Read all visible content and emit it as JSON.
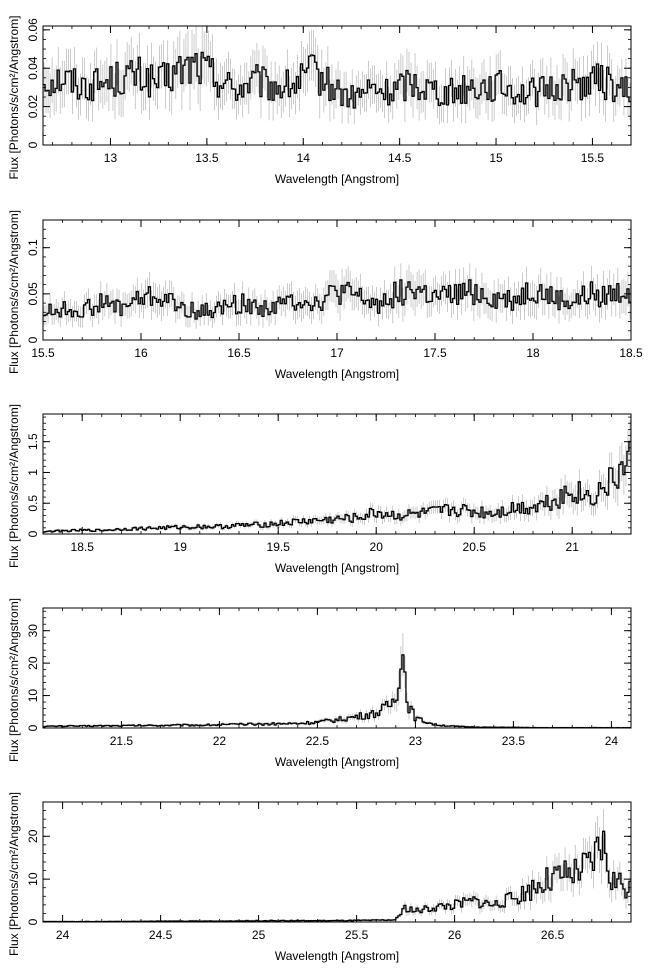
{
  "panels": [
    {
      "xlabel": "Wavelength [Angstrom]",
      "ylabel": "Flux [Photons/s/cm²/Angstrom]",
      "xlim": [
        12.65,
        15.7
      ],
      "ylim": [
        0,
        0.062
      ],
      "xticks": [
        {
          "v": 13,
          "label": "13"
        },
        {
          "v": 13.5,
          "label": "13.5"
        },
        {
          "v": 14,
          "label": "14"
        },
        {
          "v": 14.5,
          "label": "14.5"
        },
        {
          "v": 15,
          "label": "15"
        },
        {
          "v": 15.5,
          "label": "15.5"
        }
      ],
      "yticks": [
        {
          "v": 0,
          "label": "0"
        },
        {
          "v": 0.02,
          "label": "0.02"
        },
        {
          "v": 0.04,
          "label": "0.04"
        },
        {
          "v": 0.06,
          "label": "0.06"
        }
      ],
      "x_minor_step": 0.1,
      "y_minor_step": 0.005
    },
    {
      "xlabel": "Wavelength [Angstrom]",
      "ylabel": "Flux [Photons/s/cm²/Angstrom]",
      "xlim": [
        15.5,
        18.5
      ],
      "ylim": [
        0,
        0.13
      ],
      "xticks": [
        {
          "v": 15.5,
          "label": "15.5"
        },
        {
          "v": 16,
          "label": "16"
        },
        {
          "v": 16.5,
          "label": "16.5"
        },
        {
          "v": 17,
          "label": "17"
        },
        {
          "v": 17.5,
          "label": "17.5"
        },
        {
          "v": 18,
          "label": "18"
        },
        {
          "v": 18.5,
          "label": "18.5"
        }
      ],
      "yticks": [
        {
          "v": 0,
          "label": "0"
        },
        {
          "v": 0.05,
          "label": "0.05"
        },
        {
          "v": 0.1,
          "label": "0.1"
        }
      ],
      "x_minor_step": 0.1,
      "y_minor_step": 0.01
    },
    {
      "xlabel": "Wavelength [Angstrom]",
      "ylabel": "Flux [Photons/s/cm²/Angstrom]",
      "xlim": [
        18.3,
        21.3
      ],
      "ylim": [
        0,
        1.95
      ],
      "xticks": [
        {
          "v": 18.5,
          "label": "18.5"
        },
        {
          "v": 19,
          "label": "19"
        },
        {
          "v": 19.5,
          "label": "19.5"
        },
        {
          "v": 20,
          "label": "20"
        },
        {
          "v": 20.5,
          "label": "20.5"
        },
        {
          "v": 21,
          "label": "21"
        }
      ],
      "yticks": [
        {
          "v": 0,
          "label": "0"
        },
        {
          "v": 0.5,
          "label": "0.5"
        },
        {
          "v": 1,
          "label": "1"
        },
        {
          "v": 1.5,
          "label": "1.5"
        }
      ],
      "x_minor_step": 0.1,
      "y_minor_step": 0.1
    },
    {
      "xlabel": "Wavelength [Angstrom]",
      "ylabel": "Flux [Photons/s/cm²/Angstrom]",
      "xlim": [
        21.1,
        24.1
      ],
      "ylim": [
        0,
        37
      ],
      "xticks": [
        {
          "v": 21.5,
          "label": "21.5"
        },
        {
          "v": 22,
          "label": "22"
        },
        {
          "v": 22.5,
          "label": "22.5"
        },
        {
          "v": 23,
          "label": "23"
        },
        {
          "v": 23.5,
          "label": "23.5"
        },
        {
          "v": 24,
          "label": "24"
        }
      ],
      "yticks": [
        {
          "v": 0,
          "label": "0"
        },
        {
          "v": 10,
          "label": "10"
        },
        {
          "v": 20,
          "label": "20"
        },
        {
          "v": 30,
          "label": "30"
        }
      ],
      "x_minor_step": 0.1,
      "y_minor_step": 2
    },
    {
      "xlabel": "Wavelength [Angstrom]",
      "ylabel": "Flux [Photons/s/cm²/Angstrom]",
      "xlim": [
        23.9,
        26.9
      ],
      "ylim": [
        0,
        28
      ],
      "xticks": [
        {
          "v": 24,
          "label": "24"
        },
        {
          "v": 24.5,
          "label": "24.5"
        },
        {
          "v": 25,
          "label": "25"
        },
        {
          "v": 25.5,
          "label": "25.5"
        },
        {
          "v": 26,
          "label": "26"
        },
        {
          "v": 26.5,
          "label": "26.5"
        }
      ],
      "yticks": [
        {
          "v": 0,
          "label": "0"
        },
        {
          "v": 10,
          "label": "10"
        },
        {
          "v": 20,
          "label": "20"
        }
      ],
      "x_minor_step": 0.1,
      "y_minor_step": 2
    }
  ],
  "chart_data": [
    {
      "type": "line",
      "title": "",
      "xlabel": "Wavelength [Angstrom]",
      "ylabel": "Flux [Photons/s/cm²/Angstrom]",
      "xlim": [
        12.65,
        15.7
      ],
      "ylim": [
        0,
        0.062
      ],
      "grid": false,
      "series": [
        {
          "x": [
            12.65,
            12.75,
            12.85,
            12.95,
            13.05,
            13.15,
            13.25,
            13.35,
            13.45,
            13.55,
            13.65,
            13.75,
            13.85,
            13.95,
            14.05,
            14.15,
            14.25,
            14.35,
            14.45,
            14.55,
            14.65,
            14.75,
            14.85,
            14.95,
            15.05,
            15.15,
            15.25,
            15.35,
            15.45,
            15.55,
            15.65
          ],
          "y": [
            0.033,
            0.035,
            0.031,
            0.032,
            0.035,
            0.036,
            0.032,
            0.038,
            0.042,
            0.035,
            0.029,
            0.033,
            0.03,
            0.031,
            0.038,
            0.03,
            0.024,
            0.029,
            0.027,
            0.033,
            0.03,
            0.027,
            0.03,
            0.031,
            0.03,
            0.027,
            0.028,
            0.031,
            0.032,
            0.034,
            0.028
          ]
        }
      ]
    },
    {
      "type": "line",
      "title": "",
      "xlabel": "Wavelength [Angstrom]",
      "ylabel": "Flux [Photons/s/cm²/Angstrom]",
      "xlim": [
        15.5,
        18.5
      ],
      "ylim": [
        0,
        0.13
      ],
      "grid": false,
      "series": [
        {
          "x": [
            15.5,
            15.6,
            15.7,
            15.8,
            15.9,
            16.0,
            16.1,
            16.2,
            16.3,
            16.4,
            16.5,
            16.6,
            16.7,
            16.8,
            16.9,
            17.0,
            17.1,
            17.2,
            17.3,
            17.4,
            17.5,
            17.6,
            17.7,
            17.8,
            17.9,
            18.0,
            18.1,
            18.2,
            18.3,
            18.4,
            18.5
          ],
          "y": [
            0.03,
            0.033,
            0.032,
            0.04,
            0.035,
            0.045,
            0.047,
            0.035,
            0.03,
            0.034,
            0.04,
            0.035,
            0.037,
            0.045,
            0.04,
            0.052,
            0.047,
            0.038,
            0.05,
            0.055,
            0.045,
            0.048,
            0.052,
            0.045,
            0.043,
            0.055,
            0.045,
            0.04,
            0.05,
            0.048,
            0.055
          ]
        }
      ]
    },
    {
      "type": "line",
      "title": "",
      "xlabel": "Wavelength [Angstrom]",
      "ylabel": "Flux [Photons/s/cm²/Angstrom]",
      "xlim": [
        18.3,
        21.3
      ],
      "ylim": [
        0,
        1.95
      ],
      "grid": false,
      "series": [
        {
          "x": [
            18.3,
            18.4,
            18.5,
            18.6,
            18.7,
            18.8,
            18.9,
            19.0,
            19.1,
            19.2,
            19.3,
            19.4,
            19.5,
            19.6,
            19.7,
            19.8,
            19.9,
            20.0,
            20.1,
            20.2,
            20.3,
            20.4,
            20.5,
            20.6,
            20.7,
            20.8,
            20.9,
            21.0,
            21.1,
            21.2,
            21.3
          ],
          "y": [
            0.04,
            0.05,
            0.06,
            0.06,
            0.08,
            0.09,
            0.1,
            0.11,
            0.12,
            0.12,
            0.14,
            0.15,
            0.17,
            0.2,
            0.22,
            0.24,
            0.26,
            0.35,
            0.3,
            0.32,
            0.35,
            0.4,
            0.36,
            0.35,
            0.42,
            0.45,
            0.55,
            0.7,
            0.6,
            0.85,
            1.2
          ]
        }
      ]
    },
    {
      "type": "line",
      "title": "",
      "xlabel": "Wavelength [Angstrom]",
      "ylabel": "Flux [Photons/s/cm²/Angstrom]",
      "xlim": [
        21.1,
        24.1
      ],
      "ylim": [
        0,
        37
      ],
      "grid": false,
      "series": [
        {
          "x": [
            21.1,
            21.2,
            21.3,
            21.4,
            21.5,
            21.6,
            21.7,
            21.8,
            21.9,
            22.0,
            22.1,
            22.2,
            22.3,
            22.4,
            22.5,
            22.6,
            22.7,
            22.8,
            22.85,
            22.9,
            22.93,
            22.96,
            23.0,
            23.1,
            23.2,
            23.3,
            23.4,
            23.5,
            23.6,
            23.8,
            24.0,
            24.1
          ],
          "y": [
            0.5,
            0.6,
            0.6,
            0.7,
            0.7,
            0.8,
            0.8,
            0.9,
            0.9,
            1.0,
            1.1,
            1.2,
            1.3,
            1.4,
            1.8,
            2.5,
            3.5,
            4.5,
            6.0,
            9.0,
            26.0,
            8.0,
            3.0,
            1.0,
            0.5,
            0.3,
            0.2,
            0.2,
            0.1,
            0.1,
            0.1,
            0.1
          ]
        }
      ]
    },
    {
      "type": "line",
      "title": "",
      "xlabel": "Wavelength [Angstrom]",
      "ylabel": "Flux [Photons/s/cm²/Angstrom]",
      "xlim": [
        23.9,
        26.9
      ],
      "ylim": [
        0,
        28
      ],
      "grid": false,
      "series": [
        {
          "x": [
            23.9,
            24.0,
            24.2,
            24.4,
            24.6,
            24.8,
            25.0,
            25.2,
            25.4,
            25.6,
            25.7,
            25.75,
            25.8,
            25.9,
            26.0,
            26.1,
            26.2,
            26.3,
            26.4,
            26.5,
            26.6,
            26.7,
            26.75,
            26.8,
            26.9
          ],
          "y": [
            0.1,
            0.1,
            0.1,
            0.15,
            0.2,
            0.2,
            0.3,
            0.3,
            0.3,
            0.4,
            0.5,
            3.5,
            2.5,
            3.5,
            4.0,
            5.0,
            4.0,
            5.5,
            8.0,
            10.0,
            11.0,
            13.0,
            19.0,
            10.0,
            8.0
          ]
        }
      ]
    }
  ]
}
